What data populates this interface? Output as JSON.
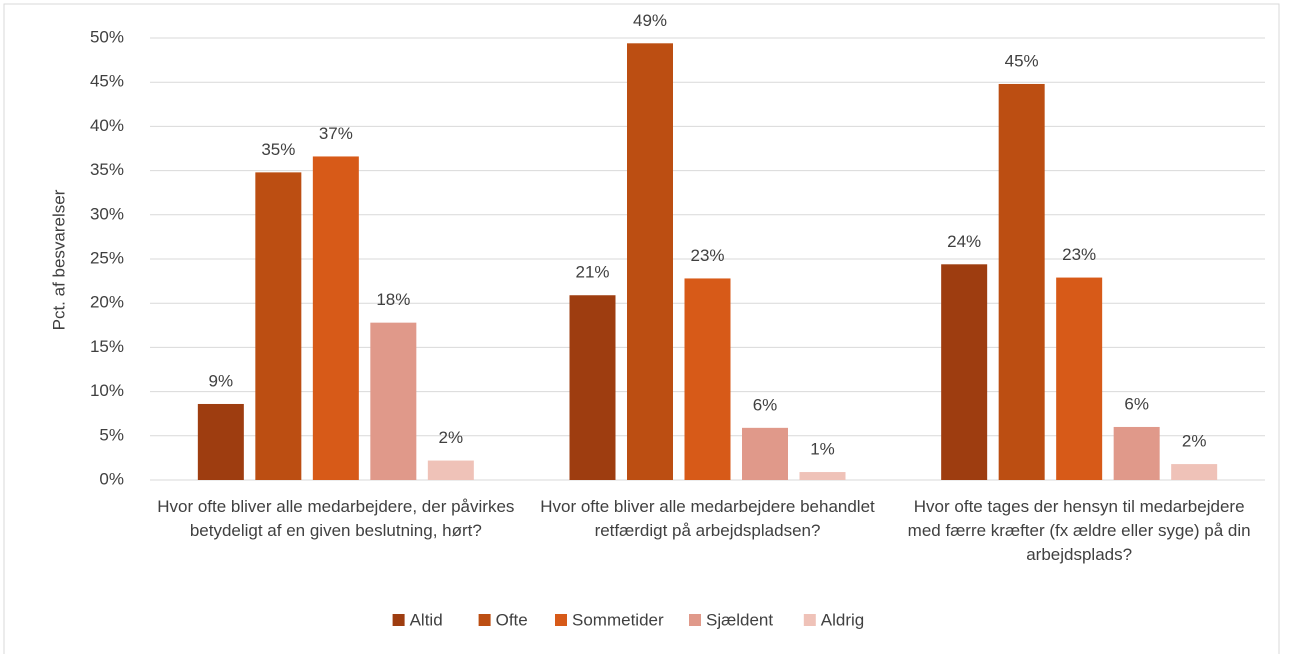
{
  "chart_data": {
    "type": "bar",
    "y_label": "Pct. af besvarelser",
    "categories": [
      "Hvor ofte bliver alle medarbejdere, der påvirkes betydeligt af en given beslutning, hørt?",
      "Hvor ofte bliver alle medarbejdere behandlet retfærdigt på arbejdspladsen?",
      "Hvor ofte tages der hensyn til medarbejdere med færre kræfter (fx ældre eller syge) på din arbejdsplads?"
    ],
    "series": [
      {
        "name": "Altid",
        "color": "#9e3d10",
        "values": [
          8.6,
          20.9,
          24.4
        ],
        "value_labels": [
          "9%",
          "21%",
          "24%"
        ]
      },
      {
        "name": "Ofte",
        "color": "#bc4e12",
        "values": [
          34.8,
          49.4,
          44.8
        ],
        "value_labels": [
          "35%",
          "49%",
          "45%"
        ]
      },
      {
        "name": "Sommetider",
        "color": "#d75a18",
        "values": [
          36.6,
          22.8,
          22.9
        ],
        "value_labels": [
          "37%",
          "23%",
          "23%"
        ]
      },
      {
        "name": "Sjældent",
        "color": "#e0998a",
        "values": [
          17.8,
          5.9,
          6.0
        ],
        "value_labels": [
          "18%",
          "6%",
          "6%"
        ]
      },
      {
        "name": "Aldrig",
        "color": "#efc2b8",
        "values": [
          2.2,
          0.9,
          1.8
        ],
        "value_labels": [
          "2%",
          "1%",
          "2%"
        ]
      }
    ],
    "ylim": [
      0,
      50
    ],
    "yticks": [
      {
        "value": 0,
        "label": "0%"
      },
      {
        "value": 5,
        "label": "5%"
      },
      {
        "value": 10,
        "label": "10%"
      },
      {
        "value": 15,
        "label": "15%"
      },
      {
        "value": 20,
        "label": "20%"
      },
      {
        "value": 25,
        "label": "25%"
      },
      {
        "value": 30,
        "label": "30%"
      },
      {
        "value": 35,
        "label": "35%"
      },
      {
        "value": 40,
        "label": "40%"
      },
      {
        "value": 45,
        "label": "45%"
      },
      {
        "value": 50,
        "label": "50%"
      }
    ],
    "grid": true,
    "legend": "bottom"
  }
}
